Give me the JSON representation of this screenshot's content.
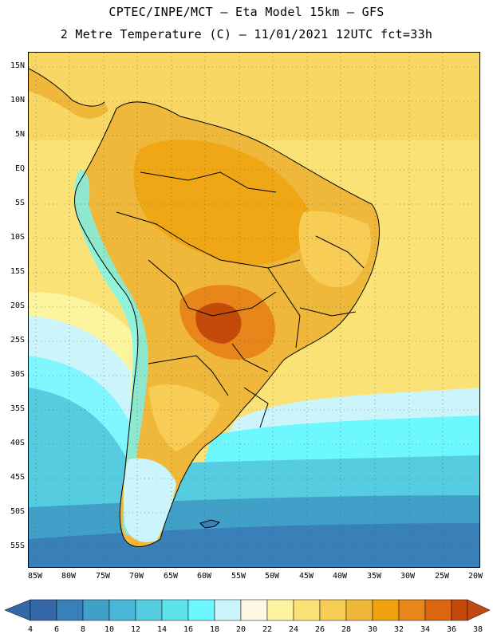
{
  "header": {
    "line1": "CPTEC/INPE/MCT –  Eta Model 15km – GFS",
    "line2": "2 Metre Temperature (C) – 11/01/2021 12UTC fct=33h"
  },
  "map": {
    "lat_labels": [
      "15N",
      "10N",
      "5N",
      "EQ",
      "5S",
      "10S",
      "15S",
      "20S",
      "25S",
      "30S",
      "35S",
      "40S",
      "45S",
      "50S",
      "55S"
    ],
    "lon_labels": [
      "85W",
      "80W",
      "75W",
      "70W",
      "65W",
      "60W",
      "55W",
      "50W",
      "45W",
      "40W",
      "35W",
      "30W",
      "25W",
      "20W"
    ]
  },
  "colorbar": {
    "ticks": [
      "4",
      "6",
      "8",
      "10",
      "12",
      "14",
      "16",
      "18",
      "20",
      "22",
      "24",
      "26",
      "28",
      "30",
      "32",
      "34",
      "36",
      "38"
    ],
    "colors": [
      "#3468a8",
      "#3a80b8",
      "#41a0c8",
      "#4ab6d8",
      "#55ccdf",
      "#5ee3ec",
      "#6df8ff",
      "#ccf5fb",
      "#fdf7e4",
      "#fdf4a0",
      "#fbe276",
      "#f7cd55",
      "#efb83a",
      "#f0a30d",
      "#e8861c",
      "#dc6510",
      "#c44a0a"
    ],
    "low_arrow_color": "#3468a8",
    "high_arrow_color": "#c14a12"
  }
}
